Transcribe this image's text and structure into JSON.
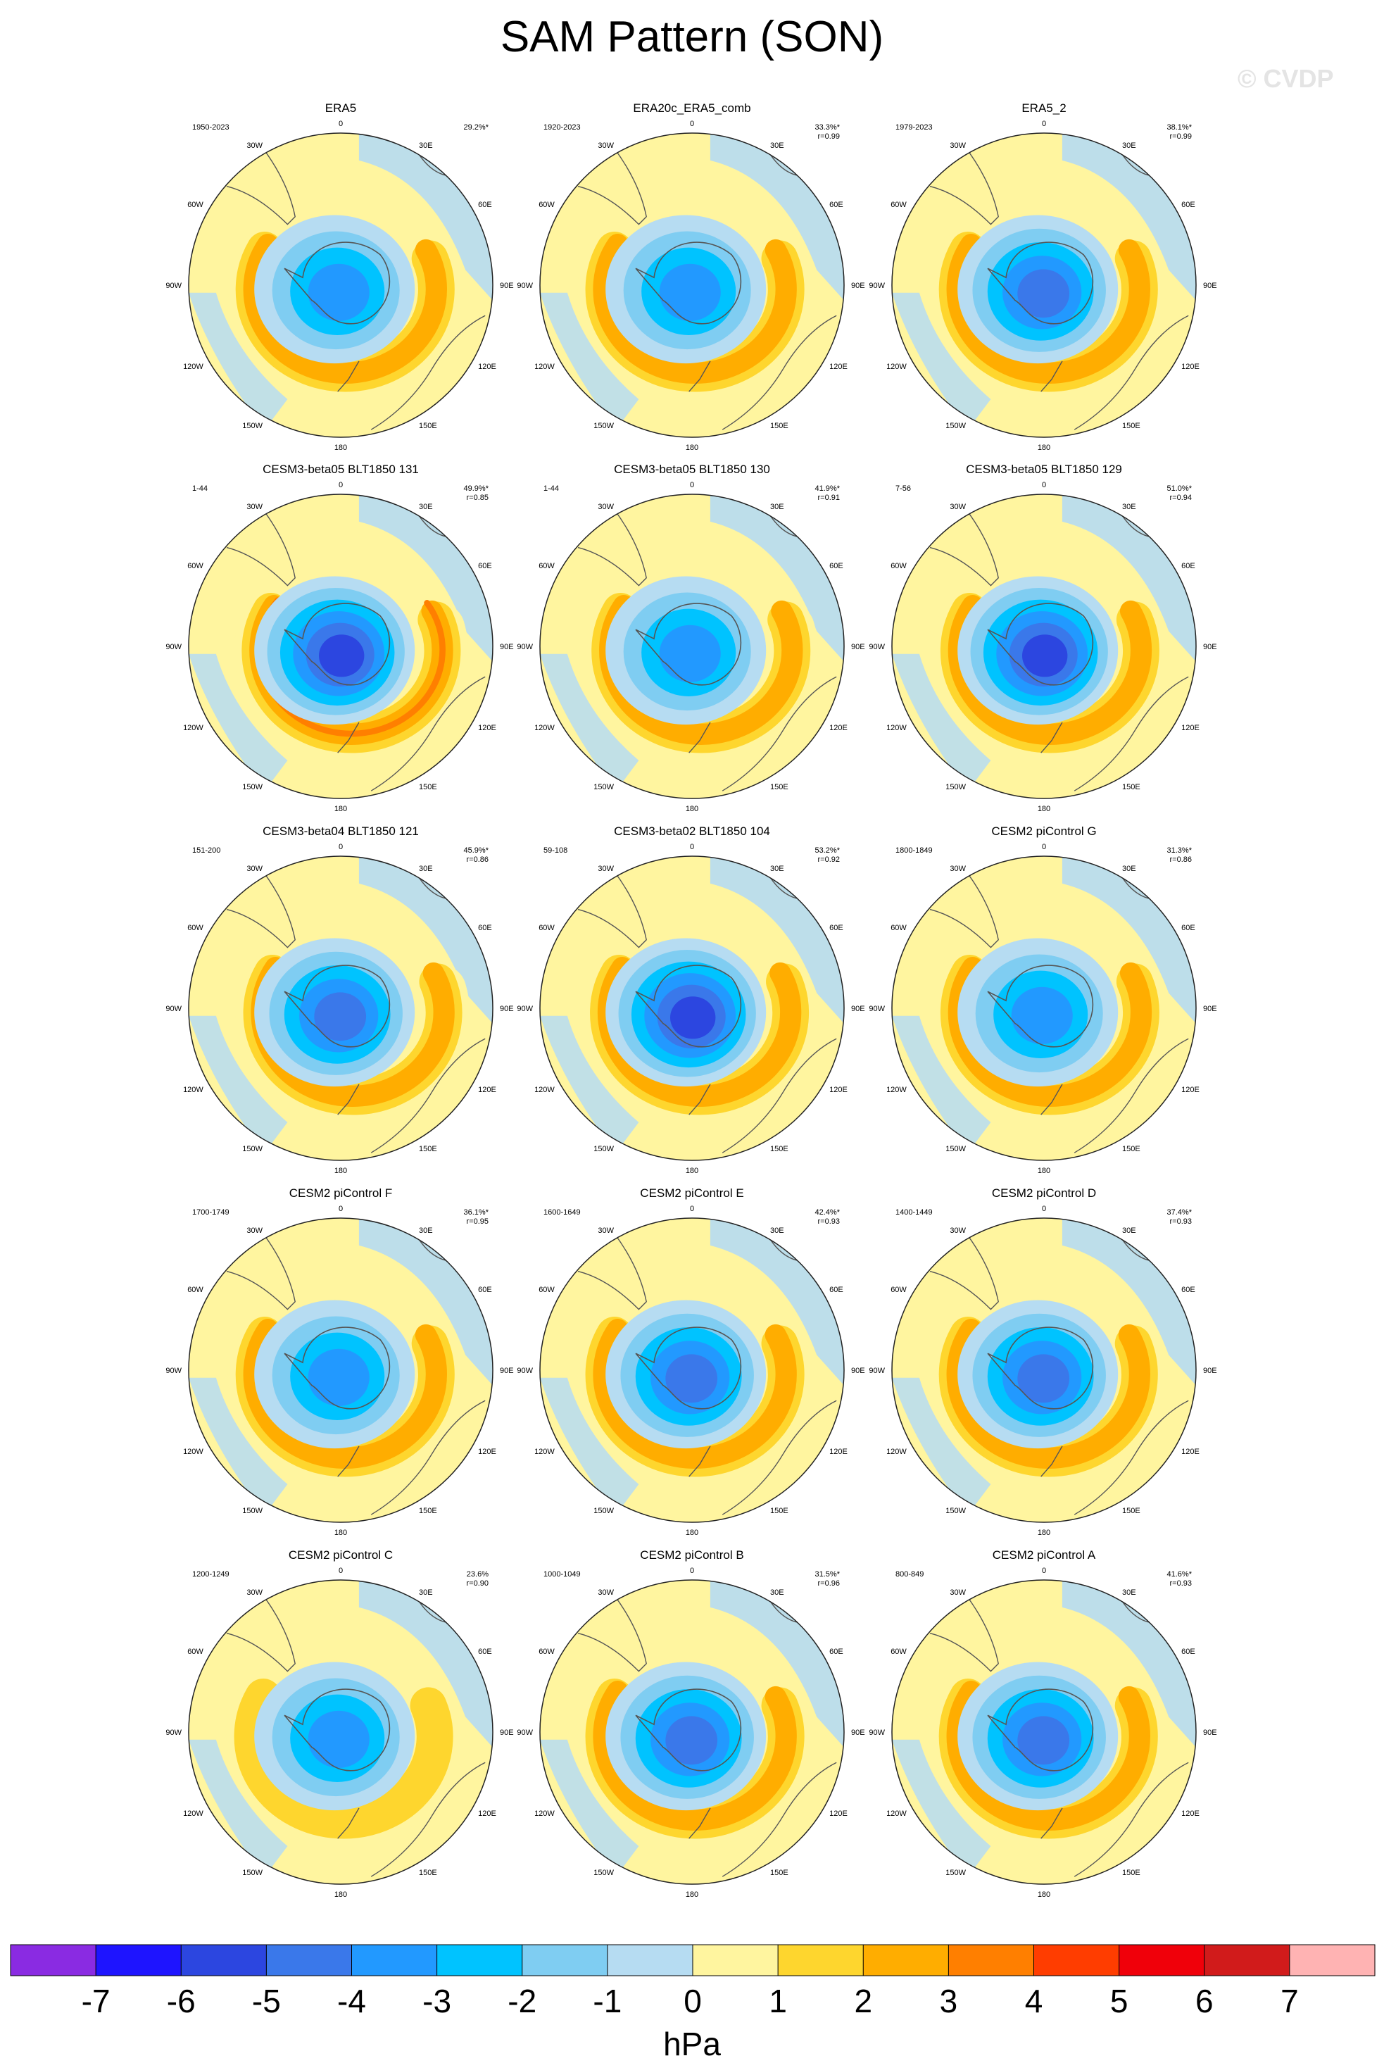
{
  "title": "SAM Pattern (SON)",
  "watermark": "© CVDP",
  "colors": {
    "ocean": "#b6dcf2",
    "land_coast": "#555555",
    "outline": "#222222"
  },
  "longitude_labels": [
    "0",
    "30E",
    "60E",
    "90E",
    "120E",
    "150E",
    "180",
    "150W",
    "120W",
    "90W",
    "60W",
    "30W"
  ],
  "chart_data": {
    "type": "heatmap",
    "title": "SAM Pattern (SON)",
    "units": "hPa",
    "colorbar": {
      "ticks": [
        "-7",
        "-6",
        "-5",
        "-4",
        "-3",
        "-2",
        "-1",
        "0",
        "1",
        "2",
        "3",
        "4",
        "5",
        "6",
        "7"
      ],
      "colors": [
        "#8a2be2",
        "#1e14ff",
        "#2c46e0",
        "#3a78ea",
        "#2299ff",
        "#00c3ff",
        "#7fcdf2",
        "#b6dcf2",
        "#fff59f",
        "#fed62e",
        "#ffad00",
        "#ff7f00",
        "#ff3d00",
        "#f0000a",
        "#d11b1b",
        "#ffb3b3"
      ]
    },
    "panels": [
      {
        "title": "ERA5",
        "years": "1950-2023",
        "pct": "29.2%*",
        "r": "",
        "min": -3.8,
        "max": 2.6,
        "tilt": 0.05
      },
      {
        "title": "ERA20c_ERA5_comb",
        "years": "1920-2023",
        "pct": "33.3%*",
        "r": "r=0.99",
        "min": -4.0,
        "max": 2.3,
        "tilt": 0.0
      },
      {
        "title": "ERA5_2",
        "years": "1979-2023",
        "pct": "38.1%*",
        "r": "r=0.99",
        "min": -4.6,
        "max": 2.6,
        "tilt": 0.05
      },
      {
        "title": "CESM3-beta05 BLT1850 131",
        "years": "1-44",
        "pct": "49.9%*",
        "r": "r=0.85",
        "min": -5.2,
        "max": 3.6,
        "tilt": 0.25
      },
      {
        "title": "CESM3-beta05 BLT1850 130",
        "years": "1-44",
        "pct": "41.9%*",
        "r": "r=0.91",
        "min": -3.9,
        "max": 2.9,
        "tilt": 0.2
      },
      {
        "title": "CESM3-beta05 BLT1850 129",
        "years": "7-56",
        "pct": "51.0%*",
        "r": "r=0.94",
        "min": -5.3,
        "max": 2.9,
        "tilt": 0.1
      },
      {
        "title": "CESM3-beta04 BLT1850 121",
        "years": "151-200",
        "pct": "45.9%*",
        "r": "r=0.86",
        "min": -4.4,
        "max": 2.5,
        "tilt": 0.3
      },
      {
        "title": "CESM3-beta02 BLT1850 104",
        "years": "59-108",
        "pct": "53.2%*",
        "r": "r=0.92",
        "min": -5.4,
        "max": 2.7,
        "tilt": 0.15
      },
      {
        "title": "CESM2 piControl G",
        "years": "1800-1849",
        "pct": "31.3%*",
        "r": "r=0.86",
        "min": -3.6,
        "max": 2.2,
        "tilt": 0.1
      },
      {
        "title": "CESM2 piControl F",
        "years": "1700-1749",
        "pct": "36.1%*",
        "r": "r=0.95",
        "min": -3.7,
        "max": 2.7,
        "tilt": 0.05
      },
      {
        "title": "CESM2 piControl E",
        "years": "1600-1649",
        "pct": "42.4%*",
        "r": "r=0.93",
        "min": -4.5,
        "max": 2.2,
        "tilt": 0.0
      },
      {
        "title": "CESM2 piControl D",
        "years": "1400-1449",
        "pct": "37.4%*",
        "r": "r=0.93",
        "min": -4.4,
        "max": 2.3,
        "tilt": 0.05
      },
      {
        "title": "CESM2 piControl C",
        "years": "1200-1249",
        "pct": "23.6%",
        "r": "r=0.90",
        "min": -3.2,
        "max": 2.0,
        "tilt": 0.0
      },
      {
        "title": "CESM2 piControl B",
        "years": "1000-1049",
        "pct": "31.5%*",
        "r": "r=0.96",
        "min": -4.3,
        "max": 2.2,
        "tilt": 0.0
      },
      {
        "title": "CESM2 piControl A",
        "years": "800-849",
        "pct": "41.6%*",
        "r": "r=0.93",
        "min": -4.5,
        "max": 2.3,
        "tilt": 0.05
      }
    ]
  }
}
